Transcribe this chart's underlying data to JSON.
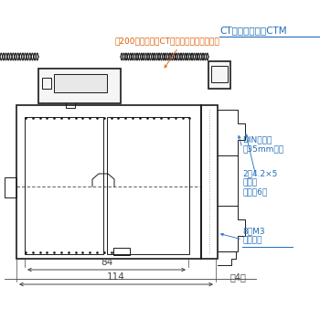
{
  "bg_color": "#ffffff",
  "line_color": "#1a1a1a",
  "annotation_color_blue": "#1e6bb8",
  "annotation_color_orange": "#e05a00",
  "dim_line_color": "#444444",
  "text_ct_protector": "CTプロテクタ（CTM",
  "text_200": "約200（本体側とCTプロテクタ側の合計）",
  "text_din": "DINレール\n（35mm幅）",
  "text_screw_hole": "2－4.2×5\n取付穴\n（深さ6）",
  "text_terminal": "8－M3\n端子ねじ",
  "text_84": "84",
  "text_114": "114",
  "text_4": "（4）"
}
